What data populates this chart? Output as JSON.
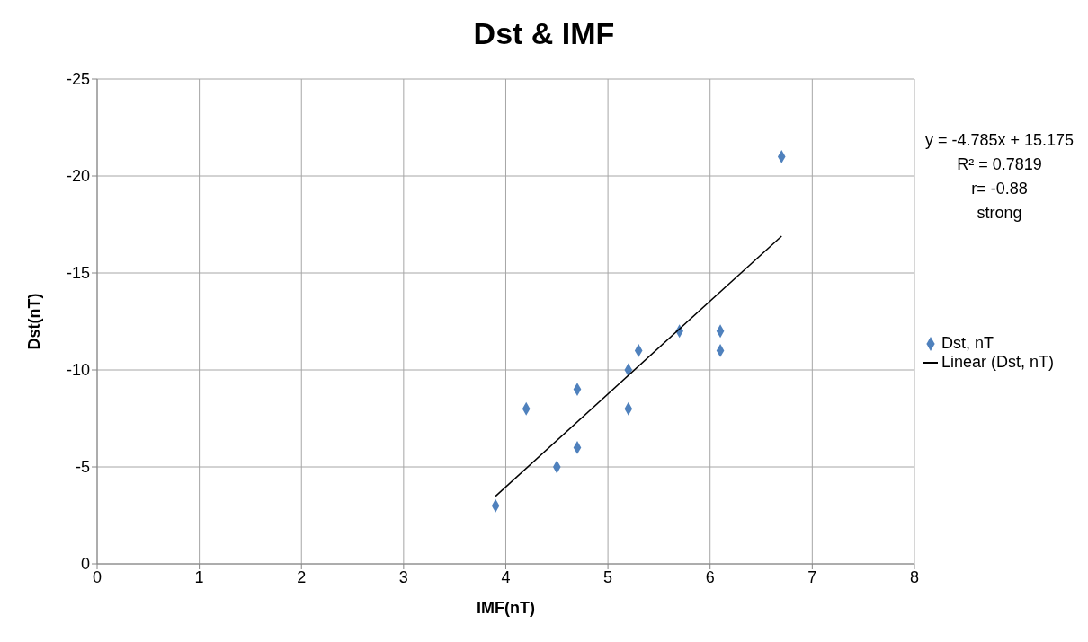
{
  "chart_data": {
    "type": "scatter",
    "title": "Dst & IMF",
    "xlabel": "IMF(nT)",
    "ylabel": "Dst(nT)",
    "xlim": [
      0,
      8
    ],
    "xticks": [
      0,
      1,
      2,
      3,
      4,
      5,
      6,
      7,
      8
    ],
    "ylim": [
      0,
      -25
    ],
    "yticks": [
      0,
      -5,
      -10,
      -15,
      -20,
      -25
    ],
    "grid": true,
    "legend": "right",
    "series": [
      {
        "name": "Dst, nT",
        "marker": "diamond",
        "color": "#4f81bd",
        "x": [
          3.9,
          4.2,
          4.5,
          4.7,
          4.7,
          5.2,
          5.2,
          5.3,
          5.7,
          6.1,
          6.1,
          6.7
        ],
        "values": [
          -3,
          -8,
          -5,
          -9,
          -6,
          -10,
          -8,
          -11,
          -12,
          -12,
          -11,
          -21
        ]
      },
      {
        "name": "Linear (Dst, nT)",
        "type": "line",
        "color": "#000000",
        "x": [
          3.9,
          6.7
        ],
        "values": [
          -3.49,
          -16.9
        ]
      }
    ],
    "annotations": [
      "y = -4.785x + 15.175",
      "R² = 0.7819",
      "r= -0.88",
      "strong"
    ]
  }
}
